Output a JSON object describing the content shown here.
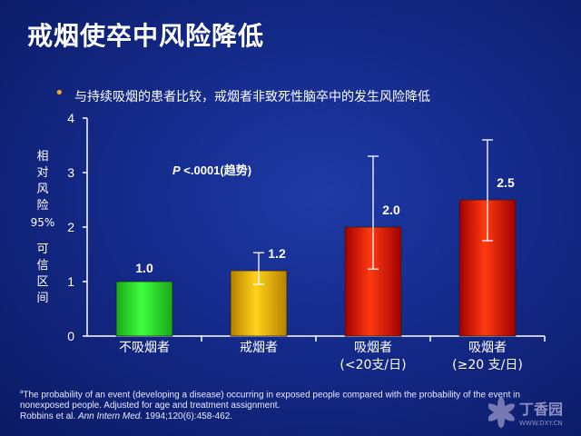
{
  "title": "戒烟使卒中风险降低",
  "bullet": "与持续吸烟的患者比较，戒烟者非致死性脑卒中的发生风险降低",
  "y_axis_label_top": [
    "相",
    "对",
    "风",
    "险"
  ],
  "y_axis_label_mid": "95%",
  "y_axis_label_bottom": [
    "可",
    "信",
    "区",
    "间"
  ],
  "annotation": "P <.0001(趋势)",
  "footnote": {
    "marker": "a",
    "line1": "The probability of an event (developing a disease) occurring in exposed people compared with the probability of the event in nonexposed people. Adjusted for age and treatment assignment.",
    "citation_prefix": "Robbins et al. ",
    "citation_journal": "Ann Intern Med.",
    "citation_suffix": " 1994;120(6):458-462."
  },
  "watermark": {
    "text": "丁香园",
    "url": "WWW.DXY.CN"
  },
  "chart_data": {
    "type": "bar",
    "categories": [
      [
        "不吸烟者"
      ],
      [
        "戒烟者"
      ],
      [
        "吸烟者",
        "(<20支/日)"
      ],
      [
        "吸烟者",
        "(≥20 支/日)"
      ]
    ],
    "values": [
      1.0,
      1.2,
      2.0,
      2.5
    ],
    "value_labels": [
      "1.0",
      "1.2",
      "2.0",
      "2.5"
    ],
    "error_low": [
      null,
      0.95,
      1.23,
      1.75
    ],
    "error_high": [
      null,
      1.53,
      3.3,
      3.6
    ],
    "ylim": [
      0,
      4
    ],
    "yticks": [
      0,
      1,
      2,
      3,
      4
    ],
    "colors": {
      "bar_top": [
        "#3dff3d",
        "#ffd21a",
        "#ff3a10",
        "#ff3a10"
      ],
      "bar_bottom": [
        "#1aa81a",
        "#b88000",
        "#a00000",
        "#a00000"
      ],
      "axis": "#ffffff",
      "errorbar": "#ffffff"
    },
    "grid": false
  }
}
